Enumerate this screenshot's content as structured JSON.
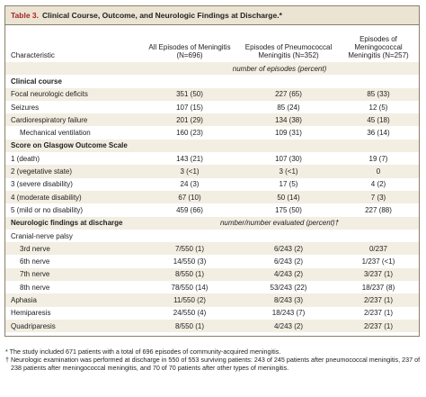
{
  "title": {
    "label": "Table 3.",
    "text": "Clinical Course, Outcome, and Neurologic Findings at Discharge.*"
  },
  "columns": [
    "Characteristic",
    "All Episodes of Meningitis (N=696)",
    "Episodes of Pneumococcal Meningitis (N=352)",
    "Episodes of Meningococcal Meningitis (N=257)"
  ],
  "units": "number of episodes (percent)",
  "sections": [
    {
      "title": "Clinical course",
      "rows": [
        {
          "label": "Focal neurologic deficits",
          "values": [
            "351 (50)",
            "227 (65)",
            "85 (33)"
          ]
        },
        {
          "label": "Seizures",
          "values": [
            "107 (15)",
            "85 (24)",
            "12 (5)"
          ]
        },
        {
          "label": "Cardiorespiratory failure",
          "values": [
            "201 (29)",
            "134 (38)",
            "45 (18)"
          ],
          "subrows": [
            {
              "label": "Mechanical ventilation",
              "values": [
                "160 (23)",
                "109 (31)",
                "36 (14)"
              ]
            }
          ]
        }
      ]
    },
    {
      "title": "Score on Glasgow Outcome Scale",
      "rows": [
        {
          "label": "1 (death)",
          "values": [
            "143 (21)",
            "107 (30)",
            "19 (7)"
          ]
        },
        {
          "label": "2 (vegetative state)",
          "values": [
            "3 (<1)",
            "3 (<1)",
            "0"
          ]
        },
        {
          "label": "3 (severe disability)",
          "values": [
            "24 (3)",
            "17 (5)",
            "4 (2)"
          ]
        },
        {
          "label": "4 (moderate disability)",
          "values": [
            "67 (10)",
            "50 (14)",
            "7 (3)"
          ]
        },
        {
          "label": "5 (mild or no disability)",
          "values": [
            "459 (66)",
            "175 (50)",
            "227 (88)"
          ]
        }
      ]
    },
    {
      "title": "Neurologic findings at discharge",
      "note": "number/number evaluated (percent)†",
      "rows": [
        {
          "label": "Cranial-nerve palsy",
          "subrows": [
            {
              "label": "3rd nerve",
              "values": [
                "7/550 (1)",
                "6/243 (2)",
                "0/237"
              ]
            },
            {
              "label": "6th nerve",
              "values": [
                "14/550 (3)",
                "6/243 (2)",
                "1/237 (<1)"
              ]
            },
            {
              "label": "7th nerve",
              "values": [
                "8/550 (1)",
                "4/243 (2)",
                "3/237 (1)"
              ]
            },
            {
              "label": "8th nerve",
              "values": [
                "78/550 (14)",
                "53/243 (22)",
                "18/237 (8)"
              ]
            }
          ]
        },
        {
          "label": "Aphasia",
          "values": [
            "11/550 (2)",
            "8/243 (3)",
            "2/237 (1)"
          ]
        },
        {
          "label": "Hemiparesis",
          "values": [
            "24/550 (4)",
            "18/243 (7)",
            "2/237 (1)"
          ]
        },
        {
          "label": "Quadriparesis",
          "values": [
            "8/550 (1)",
            "4/243 (2)",
            "2/237 (1)"
          ]
        }
      ]
    }
  ],
  "footnotes": [
    "* The study included 671 patients with a total of 696 episodes of community-acquired meningitis.",
    "† Neurologic examination was performed at discharge in 550 of 553 surviving patients: 243 of 245 patients after pneumococcal meningitis, 237 of 238 patients after meningococcal meningitis, and 70 of 70 patients after other types of meningitis."
  ]
}
